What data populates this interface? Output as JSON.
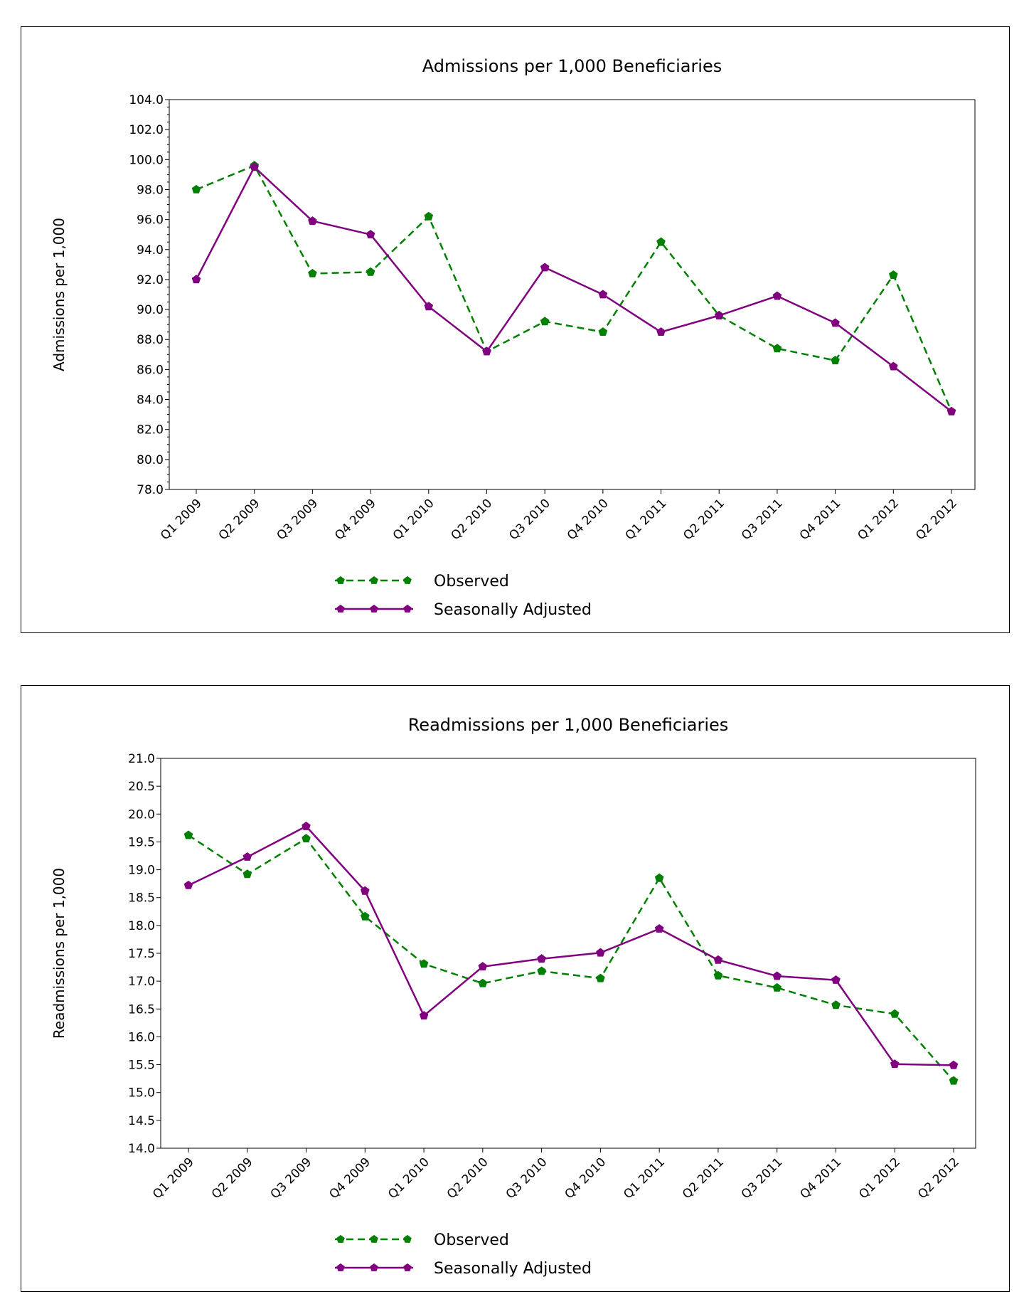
{
  "chart_data": [
    {
      "type": "line",
      "title": "Admissions per 1,000 Beneficiaries",
      "xlabel": "",
      "ylabel": "Admissions per 1,000",
      "categories": [
        "Q1 2009",
        "Q2 2009",
        "Q3 2009",
        "Q4 2009",
        "Q1 2010",
        "Q2 2010",
        "Q3 2010",
        "Q4 2010",
        "Q1 2011",
        "Q2 2011",
        "Q3 2011",
        "Q4 2011",
        "Q1 2012",
        "Q2 2012"
      ],
      "ylim": [
        78,
        104
      ],
      "yticks": [
        "78.0",
        "80.0",
        "82.0",
        "84.0",
        "86.0",
        "88.0",
        "90.0",
        "92.0",
        "94.0",
        "96.0",
        "98.0",
        "100.0",
        "102.0",
        "104.0"
      ],
      "grid": false,
      "legend_placement": "bottom",
      "series": [
        {
          "name": "Observed",
          "color": "#008000",
          "style": "dashed",
          "marker": "pentagon",
          "values": [
            98.0,
            99.6,
            92.4,
            92.5,
            96.2,
            87.2,
            89.2,
            88.5,
            94.5,
            89.6,
            87.4,
            86.6,
            92.3,
            83.2
          ]
        },
        {
          "name": "Seasonally Adjusted",
          "color": "#800080",
          "style": "solid",
          "marker": "pentagon",
          "values": [
            92.0,
            99.5,
            95.9,
            95.0,
            90.2,
            87.2,
            92.8,
            91.0,
            88.5,
            89.6,
            90.9,
            89.1,
            86.2,
            83.2
          ]
        }
      ]
    },
    {
      "type": "line",
      "title": "Readmissions per 1,000 Beneficiaries",
      "xlabel": "",
      "ylabel": "Readmissions per 1,000",
      "categories": [
        "Q1 2009",
        "Q2 2009",
        "Q3 2009",
        "Q4 2009",
        "Q1 2010",
        "Q2 2010",
        "Q3 2010",
        "Q4 2010",
        "Q1 2011",
        "Q2 2011",
        "Q3 2011",
        "Q4 2011",
        "Q1 2012",
        "Q2 2012"
      ],
      "ylim": [
        14,
        21
      ],
      "yticks": [
        "14.0",
        "14.5",
        "15.0",
        "15.5",
        "16.0",
        "16.5",
        "17.0",
        "17.5",
        "18.0",
        "18.5",
        "19.0",
        "19.5",
        "20.0",
        "20.5",
        "21.0"
      ],
      "grid": false,
      "legend_placement": "bottom",
      "series": [
        {
          "name": "Observed",
          "color": "#008000",
          "style": "dashed",
          "marker": "pentagon",
          "values": [
            19.62,
            18.92,
            19.56,
            18.16,
            17.31,
            16.96,
            17.18,
            17.05,
            18.85,
            17.1,
            16.88,
            16.57,
            16.41,
            15.21
          ]
        },
        {
          "name": "Seasonally Adjusted",
          "color": "#800080",
          "style": "solid",
          "marker": "pentagon",
          "values": [
            18.72,
            19.23,
            19.78,
            18.62,
            16.38,
            17.26,
            17.4,
            17.51,
            17.94,
            17.38,
            17.09,
            17.02,
            15.51,
            15.49
          ]
        }
      ]
    }
  ]
}
